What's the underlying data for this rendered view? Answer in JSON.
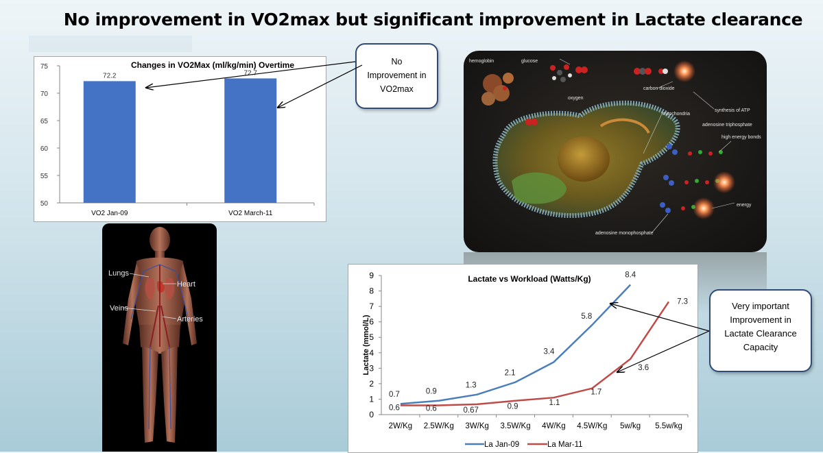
{
  "slide": {
    "title": "No improvement in VO2max but significant improvement in Lactate clearance"
  },
  "callouts": {
    "vo2": [
      "No",
      "Improvement in",
      "VO2max"
    ],
    "lactate": [
      "Very important",
      "Improvement in",
      "Lactate Clearance",
      "Capacity"
    ]
  },
  "cell_diagram": {
    "labels": [
      "hemoglobin",
      "glucose",
      "oxygen",
      "carbon dioxide",
      "synthesis of ATP",
      "mitochondria",
      "adenosine triphosphate",
      "high energy bonds",
      "energy",
      "adenosine monophosphate"
    ]
  },
  "body_diagram": {
    "labels": [
      "Lungs",
      "Heart",
      "Veins",
      "Arteries"
    ]
  },
  "colors": {
    "bar": "#4472c4",
    "series_jan": "#4a7ebb",
    "series_mar": "#be4b48",
    "callout_border": "#2e4a78"
  },
  "chart_data": [
    {
      "type": "bar",
      "title": "Changes in  VO2Max (ml/kg/min)  Overtime",
      "categories": [
        "VO2 Jan-09",
        "VO2 March-11"
      ],
      "values": [
        72.2,
        72.7
      ],
      "value_labels": [
        "72.2",
        "72.7"
      ],
      "ylim": [
        50,
        75
      ],
      "yticks": [
        50,
        55,
        60,
        65,
        70,
        75
      ],
      "xlabel": "",
      "ylabel": "",
      "grid": false
    },
    {
      "type": "line",
      "title": "Lactate vs Workload (Watts/Kg)",
      "categories": [
        "2W/Kg",
        "2.5W/Kg",
        "3W/Kg",
        "3.5W/Kg",
        "4W/Kg",
        "4.5W/Kg",
        "5w/kg",
        "5.5w/kg"
      ],
      "ylabel": "Lactate (mmol/L)",
      "xlabel": "",
      "ylim": [
        0,
        9
      ],
      "yticks": [
        0,
        1,
        2,
        3,
        4,
        5,
        6,
        7,
        8,
        9
      ],
      "grid": false,
      "legend_position": "bottom",
      "series": [
        {
          "name": "La Jan-09",
          "values": [
            0.7,
            0.9,
            1.3,
            2.1,
            3.4,
            5.8,
            8.4,
            null
          ],
          "labels": [
            "0.7",
            "0.9",
            "1.3",
            "2.1",
            "3.4",
            "5.8",
            "8.4",
            ""
          ]
        },
        {
          "name": "La Mar-11",
          "values": [
            0.6,
            0.6,
            0.67,
            0.9,
            1.1,
            1.7,
            3.6,
            7.3
          ],
          "labels": [
            "0.6",
            "0.6",
            "0.67",
            "0.9",
            "1.1",
            "1.7",
            "3.6",
            "7.3"
          ]
        }
      ]
    }
  ]
}
